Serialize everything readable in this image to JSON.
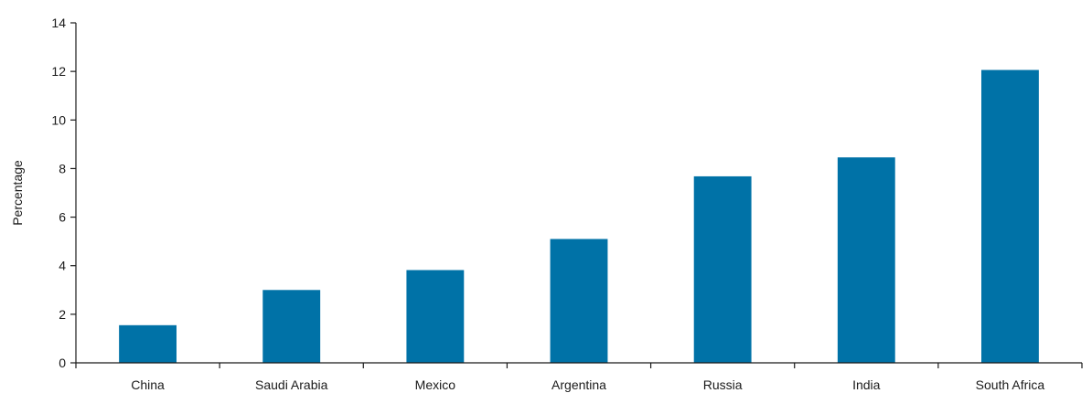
{
  "chart_data": {
    "type": "bar",
    "categories": [
      "China",
      "Saudi Arabia",
      "Mexico",
      "Argentina",
      "Russia",
      "India",
      "South Africa"
    ],
    "values": [
      1.55,
      3.0,
      3.82,
      5.1,
      7.68,
      8.46,
      12.06
    ],
    "title": "",
    "xlabel": "",
    "ylabel": "Percentage",
    "ylim": [
      0,
      14
    ],
    "yticks": [
      0,
      2,
      4,
      6,
      8,
      10,
      12,
      14
    ],
    "grid": false,
    "legend": "none",
    "bar_color": "#0072a7",
    "axis_color": "#1a1a1a"
  }
}
